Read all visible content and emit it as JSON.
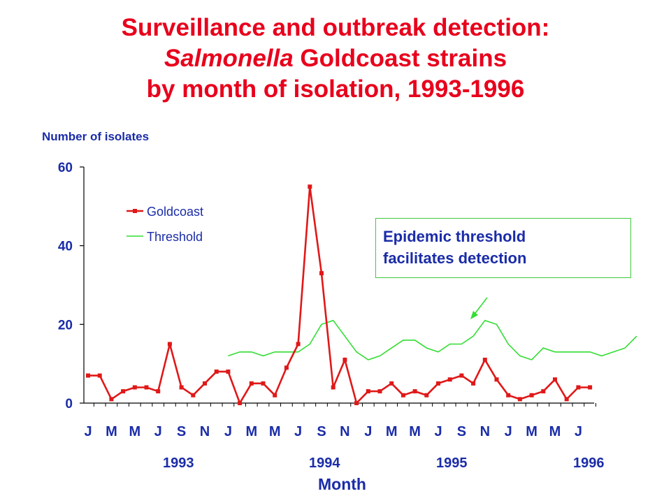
{
  "title": {
    "line1": "Surveillance and outbreak detection:",
    "line2_italic": "Salmonella",
    "line2_rest": " Goldcoast strains",
    "line3": "by month of isolation, 1993-1996"
  },
  "callout": {
    "line1": "Epidemic threshold",
    "line2": "facilitates detection"
  },
  "colors": {
    "title": "#e8001c",
    "text": "#1a2ca8",
    "goldcoast": "#e01818",
    "threshold": "#33dd33"
  },
  "chart_data": {
    "type": "line",
    "title": "",
    "ylabel": "Number of isolates",
    "xlabel": "Month",
    "ylim": [
      0,
      60
    ],
    "yticks": [
      0,
      20,
      40,
      60
    ],
    "x_tick_labels": [
      "J",
      "M",
      "M",
      "J",
      "S",
      "N",
      "J",
      "M",
      "M",
      "J",
      "S",
      "N",
      "J",
      "M",
      "M",
      "J",
      "S",
      "N",
      "J",
      "M",
      "M",
      "J"
    ],
    "years": [
      "1993",
      "1994",
      "1995",
      "1996"
    ],
    "legend": {
      "position": "top-left",
      "entries": [
        "Goldcoast",
        "Threshold"
      ]
    },
    "series": [
      {
        "name": "Goldcoast",
        "marker": "square",
        "values": [
          7,
          7,
          1,
          3,
          4,
          4,
          3,
          15,
          4,
          2,
          5,
          8,
          8,
          0,
          5,
          5,
          2,
          9,
          15,
          55,
          33,
          4,
          11,
          0,
          3,
          3,
          5,
          2,
          3,
          2,
          5,
          6,
          7,
          5,
          11,
          6,
          2,
          1,
          2,
          3,
          6,
          1,
          4,
          4
        ]
      },
      {
        "name": "Threshold",
        "marker": "none",
        "start_index": 12,
        "values": [
          12,
          13,
          13,
          12,
          13,
          13,
          13,
          15,
          20,
          21,
          17,
          13,
          11,
          12,
          14,
          16,
          16,
          14,
          13,
          15,
          15,
          17,
          21,
          20,
          15,
          12,
          11,
          14,
          13,
          13,
          13,
          13,
          12,
          13,
          14,
          17
        ]
      }
    ]
  }
}
